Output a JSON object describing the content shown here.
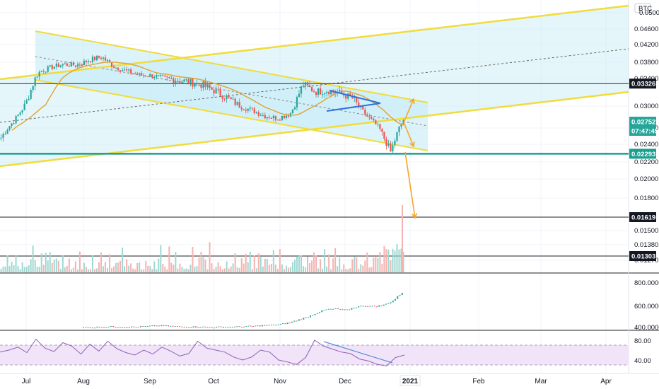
{
  "chart_data": {
    "type": "candlestick",
    "currency_label": "BTC",
    "price_axis": {
      "ticks": [
        "0.05000",
        "0.04600",
        "0.04200",
        "0.03800",
        "0.03400",
        "0.03000",
        "0.02600",
        "0.02400",
        "0.02200",
        "0.02000",
        "0.01800",
        "0.01619",
        "0.01500",
        "0.01380",
        "0.01303",
        "0.01270"
      ],
      "range": [
        0.0122,
        0.0505
      ]
    },
    "price_labels": [
      {
        "text": "0.03326",
        "style": "black"
      },
      {
        "text": "0.02752",
        "style": "green"
      },
      {
        "text": "07:47:45",
        "style": "green"
      },
      {
        "text": "0.02293",
        "style": "teal"
      },
      {
        "text": "0.01619",
        "style": "black"
      },
      {
        "text": "0.01303",
        "style": "black"
      }
    ],
    "horizontal_levels": [
      0.03326,
      0.02293,
      0.01619,
      0.01303
    ],
    "price_series": {
      "months": [
        "Jul",
        "Aug",
        "Sep",
        "Oct",
        "Nov",
        "Dec"
      ],
      "close": [
        0.0248,
        0.0272,
        0.0305,
        0.0355,
        0.0368,
        0.0375,
        0.0372,
        0.0385,
        0.0392,
        0.0369,
        0.0358,
        0.0349,
        0.0347,
        0.0341,
        0.0338,
        0.0335,
        0.0331,
        0.0322,
        0.0312,
        0.03,
        0.0292,
        0.0282,
        0.0278,
        0.0286,
        0.0332,
        0.0321,
        0.0323,
        0.0318,
        0.0311,
        0.0284,
        0.0262,
        0.0231,
        0.0275
      ]
    },
    "obv_panel": {
      "ticks": [
        "800.00000",
        "600.00000",
        "400.00000"
      ],
      "range": [
        380,
        880
      ],
      "values": [
        430,
        431,
        433,
        436,
        434,
        433,
        435,
        440,
        444,
        441,
        437,
        435,
        434,
        433,
        432,
        433,
        434,
        436,
        440,
        445,
        448,
        455,
        470,
        495,
        520,
        555,
        580,
        585,
        570,
        600,
        610,
        605,
        615,
        650,
        720
      ]
    },
    "rsi_panel": {
      "ticks": [
        "80.00",
        "40.00"
      ],
      "range": [
        15,
        95
      ],
      "band": [
        30,
        70
      ],
      "values": [
        56,
        60,
        66,
        55,
        82,
        64,
        57,
        75,
        68,
        52,
        72,
        58,
        78,
        63,
        55,
        50,
        60,
        52,
        66,
        58,
        48,
        53,
        78,
        64,
        60,
        56,
        46,
        40,
        46,
        60,
        56,
        40,
        36,
        31,
        45,
        80,
        68,
        62,
        56,
        53,
        42,
        38,
        31,
        28,
        45,
        50
      ]
    },
    "time_axis": {
      "labels": [
        "Jul",
        "Aug",
        "Sep",
        "Oct",
        "Nov",
        "Dec",
        "2021",
        "Feb",
        "Mar",
        "Apr"
      ]
    },
    "colors": {
      "up": "#26a69a",
      "down": "#ef5350",
      "channel": "#f0dc3c",
      "channel_fill": "#bfe9f5",
      "ma": "#e0a32e",
      "triangle": "#2f6fe0",
      "support": "#1a9e8f",
      "arrow": "#f5a623",
      "rsi": "#8e5fb8",
      "rsi_band": "#f1e4f8"
    }
  }
}
